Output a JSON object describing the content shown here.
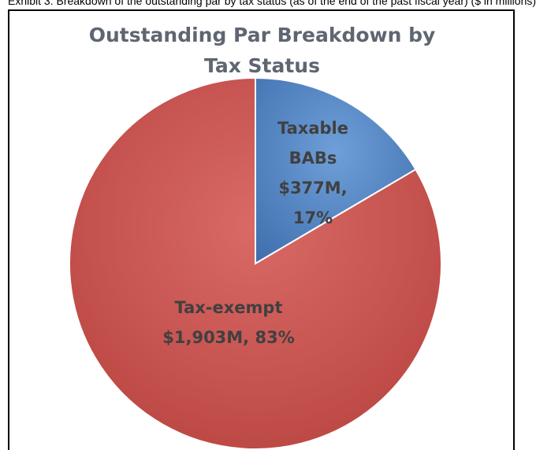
{
  "page": {
    "caption": "Exhibit 3: Breakdown of the outstanding par by tax status (as of the end of the past fiscal year) ($ in millions)"
  },
  "chart_data": {
    "type": "pie",
    "title_lines": [
      "Outstanding Par Breakdown by",
      "Tax Status"
    ],
    "slices": [
      {
        "category": "Taxable BABs",
        "value": 377,
        "percent": 17,
        "label_lines": [
          "Taxable",
          "BABs",
          "$377M,",
          "17%"
        ],
        "color": "#4f81bd"
      },
      {
        "category": "Tax-exempt",
        "value": 1903,
        "percent": 83,
        "label_lines": [
          "Tax-exempt",
          "$1,903M, 83%"
        ],
        "color": "#c0504d"
      }
    ],
    "legend": "none"
  }
}
